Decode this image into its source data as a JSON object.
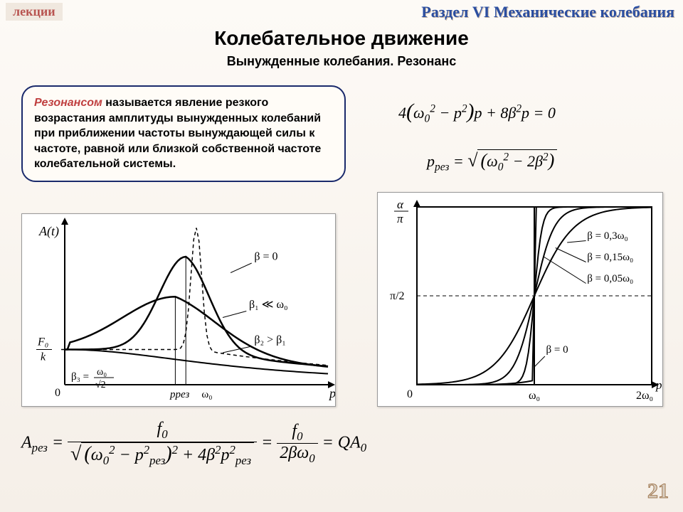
{
  "header": {
    "lectures_label": "лекции",
    "section_label": "Раздел VI Механические колебания"
  },
  "titles": {
    "main": "Колебательное движение",
    "sub": "Вынужденные колебания. Резонанс"
  },
  "callout": {
    "highlight": "Резонансом",
    "text": " называется явление резкого возрастания амплитуды вынужденных колебаний при приближении частоты вынуждающей силы к частоте, равной или близкой собственной частоте колебательной системы."
  },
  "equations": {
    "eq1": "4(ω₀² − p²)p + 8β²p = 0",
    "eq2_lhs": "p",
    "eq2_sub": "рез",
    "eq2_rhs": "√(ω₀² − 2β²)",
    "eq3_lhs": "A",
    "eq3_sub": "рез",
    "eq3_mid_num": "f₀",
    "eq3_mid_den": "√((ω₀² − p²рез)² + 4β²p²рез)",
    "eq3_r_num": "f₀",
    "eq3_r_den": "2βω₀",
    "eq3_tail": "= QA₀"
  },
  "chart_left": {
    "type": "line",
    "y_label": "A(t)",
    "x_label": "p",
    "y_tick": "F₀/k",
    "x_ticks": [
      "pрез",
      "ω₀"
    ],
    "curves": [
      {
        "label": "β = 0",
        "dash": "5,4",
        "color": "#000",
        "lw": 1.5,
        "peak_x": 0.5,
        "peak_y": 1.0,
        "sharp": 0.02
      },
      {
        "label": "β₁ ≪ ω₀",
        "dash": "none",
        "color": "#000",
        "lw": 2.5,
        "peak_x": 0.46,
        "peak_y": 0.8,
        "sharp": 0.1
      },
      {
        "label": "β₂ > β₁",
        "dash": "none",
        "color": "#000",
        "lw": 2.5,
        "peak_x": 0.42,
        "peak_y": 0.55,
        "sharp": 0.2
      },
      {
        "label": "β₃ = ω₀/√2",
        "dash": "none",
        "color": "#000",
        "lw": 2.0,
        "peak_x": 0.0,
        "peak_y": 0.24,
        "sharp": 1.0
      }
    ],
    "axis_color": "#000",
    "bg": "#ffffff",
    "xlim": [
      0,
      1
    ],
    "ylim": [
      0,
      1
    ]
  },
  "chart_right": {
    "type": "line",
    "y_label": "α/π",
    "x_label": "p",
    "y_ticks": [
      "π/2"
    ],
    "x_ticks": [
      "ω₀",
      "2ω₀"
    ],
    "curves": [
      {
        "label": "β = 0,3ω₀",
        "k": 6,
        "color": "#000",
        "lw": 2
      },
      {
        "label": "β = 0,15ω₀",
        "k": 12,
        "color": "#000",
        "lw": 2
      },
      {
        "label": "β = 0,05ω₀",
        "k": 30,
        "color": "#000",
        "lw": 2
      },
      {
        "label": "β = 0",
        "k": 200,
        "color": "#000",
        "lw": 2
      }
    ],
    "axis_color": "#000",
    "bg": "#ffffff",
    "xlim": [
      0,
      2
    ],
    "ylim": [
      0,
      1
    ]
  },
  "page_number": "21",
  "colors": {
    "callout_border": "#1a2a6c",
    "highlight_text": "#c04040",
    "section_text": "#2b4ea0"
  }
}
